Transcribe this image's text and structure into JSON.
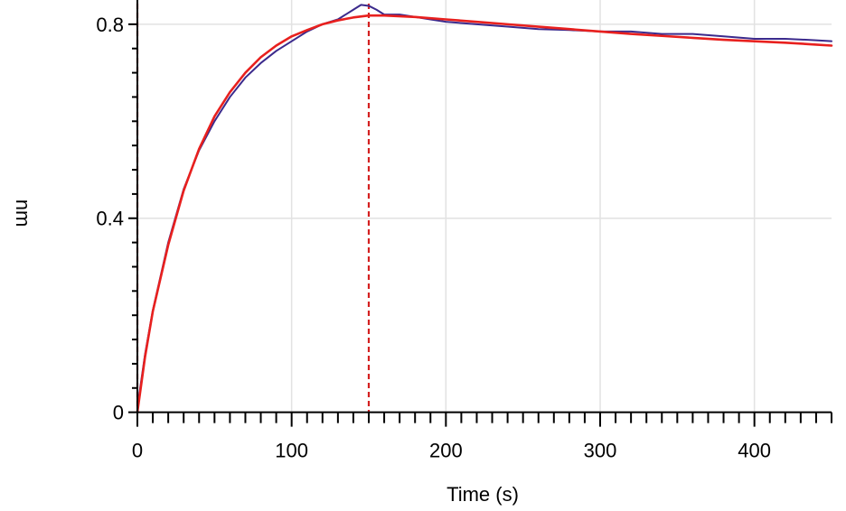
{
  "chart_data": {
    "type": "line",
    "title": "",
    "xlabel": "Time (s)",
    "ylabel": "nm",
    "xlim": [
      0,
      450
    ],
    "ylim": [
      -0.01,
      0.85
    ],
    "x_ticks": [
      0,
      100,
      200,
      300,
      400
    ],
    "x_tick_labels": [
      "0",
      "100",
      "200",
      "300",
      "400"
    ],
    "y_ticks": [
      0,
      0.4,
      0.8
    ],
    "y_tick_labels": [
      "0",
      "0.4",
      "0.8"
    ],
    "grid": true,
    "vertical_markers": [
      0,
      150
    ],
    "colors": {
      "measured": "#3b2a8c",
      "fit": "#e8201e",
      "marker": "#d42020",
      "grid": "#e2e2e2",
      "axis": "#000000"
    },
    "series": [
      {
        "key": "measured",
        "x": [
          0,
          5,
          10,
          20,
          30,
          40,
          50,
          60,
          70,
          80,
          90,
          100,
          110,
          120,
          130,
          140,
          145,
          150,
          155,
          160,
          170,
          180,
          190,
          200,
          220,
          240,
          260,
          280,
          300,
          320,
          340,
          360,
          380,
          400,
          420,
          440,
          450
        ],
        "y": [
          0.01,
          0.12,
          0.21,
          0.35,
          0.46,
          0.54,
          0.6,
          0.65,
          0.69,
          0.72,
          0.745,
          0.765,
          0.785,
          0.8,
          0.81,
          0.83,
          0.84,
          0.838,
          0.83,
          0.82,
          0.82,
          0.815,
          0.81,
          0.805,
          0.8,
          0.795,
          0.79,
          0.788,
          0.785,
          0.785,
          0.78,
          0.78,
          0.775,
          0.77,
          0.77,
          0.767,
          0.765
        ]
      },
      {
        "key": "fit",
        "x": [
          0,
          5,
          10,
          20,
          30,
          40,
          50,
          60,
          70,
          80,
          90,
          100,
          110,
          120,
          130,
          140,
          150,
          160,
          180,
          200,
          220,
          240,
          260,
          280,
          300,
          320,
          340,
          360,
          380,
          400,
          420,
          440,
          450
        ],
        "y": [
          0.0,
          0.115,
          0.208,
          0.345,
          0.457,
          0.543,
          0.61,
          0.66,
          0.7,
          0.732,
          0.756,
          0.775,
          0.788,
          0.8,
          0.808,
          0.814,
          0.818,
          0.818,
          0.815,
          0.81,
          0.805,
          0.8,
          0.795,
          0.79,
          0.785,
          0.78,
          0.776,
          0.772,
          0.768,
          0.765,
          0.762,
          0.758,
          0.756
        ]
      }
    ]
  }
}
